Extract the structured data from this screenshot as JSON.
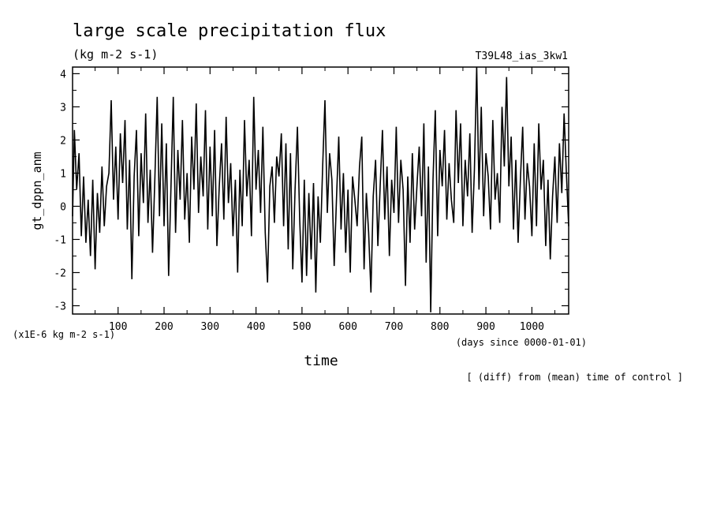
{
  "chart_data": {
    "type": "line",
    "title": "large scale precipitation flux",
    "subtitle": "(kg m-2 s-1)",
    "run_label": "T39L48_ias_3kw1",
    "ylabel": "gt_dppn_anm",
    "xlabel": "time",
    "y_scale_note": "(x1E-6 kg m-2 s-1)",
    "x_units": "(days since 0000-01-01)",
    "footnote": "[ (diff) from (mean) time of control ]",
    "xlim": [
      1,
      1080
    ],
    "ylim": [
      -3.25,
      4.2
    ],
    "x_ticks": [
      "100",
      "200",
      "300",
      "400",
      "500",
      "600",
      "700",
      "800",
      "900",
      "1000"
    ],
    "y_ticks": [
      "-3",
      "-2",
      "-1",
      "0",
      "1",
      "2",
      "3",
      "4"
    ],
    "grid": false,
    "series": [
      {
        "x": [
          1,
          5,
          10,
          15,
          20,
          25,
          30,
          35,
          40,
          45,
          50,
          55,
          60,
          65,
          70,
          75,
          80,
          85,
          90,
          95,
          100,
          105,
          110,
          115,
          120,
          125,
          130,
          135,
          140,
          145,
          150,
          155,
          160,
          165,
          170,
          175,
          180,
          185,
          190,
          195,
          200,
          205,
          210,
          215,
          220,
          225,
          230,
          235,
          240,
          245,
          250,
          255,
          260,
          265,
          270,
          275,
          280,
          285,
          290,
          295,
          300,
          305,
          310,
          315,
          320,
          325,
          330,
          335,
          340,
          345,
          350,
          355,
          360,
          365,
          370,
          375,
          380,
          385,
          390,
          395,
          400,
          405,
          410,
          415,
          420,
          425,
          430,
          435,
          440,
          445,
          450,
          455,
          460,
          465,
          470,
          475,
          480,
          485,
          490,
          495,
          500,
          505,
          510,
          515,
          520,
          525,
          530,
          535,
          540,
          545,
          550,
          555,
          560,
          565,
          570,
          575,
          580,
          585,
          590,
          595,
          600,
          605,
          610,
          615,
          620,
          625,
          630,
          635,
          640,
          645,
          650,
          655,
          660,
          665,
          670,
          675,
          680,
          685,
          690,
          695,
          700,
          705,
          710,
          715,
          720,
          725,
          730,
          735,
          740,
          745,
          750,
          755,
          760,
          765,
          770,
          775,
          780,
          785,
          790,
          795,
          800,
          805,
          810,
          815,
          820,
          825,
          830,
          835,
          840,
          845,
          850,
          855,
          860,
          865,
          870,
          875,
          880,
          885,
          890,
          895,
          900,
          905,
          910,
          915,
          920,
          925,
          930,
          935,
          940,
          945,
          950,
          955,
          960,
          965,
          970,
          975,
          980,
          985,
          990,
          995,
          1000,
          1005,
          1010,
          1015,
          1020,
          1025,
          1030,
          1035,
          1040,
          1045,
          1050,
          1055,
          1060,
          1065,
          1070,
          1075,
          1080
        ],
        "values": [
          -0.3,
          2.3,
          0.5,
          1.6,
          -0.9,
          0.9,
          -1.1,
          0.2,
          -1.5,
          0.8,
          -1.9,
          0.4,
          -0.8,
          1.2,
          -0.6,
          0.6,
          1.0,
          3.2,
          0.2,
          1.8,
          -0.4,
          2.2,
          0.7,
          2.6,
          -0.7,
          1.4,
          -2.2,
          0.9,
          2.3,
          -0.9,
          1.6,
          0.1,
          2.8,
          -0.5,
          1.1,
          -1.4,
          0.8,
          3.3,
          -0.3,
          2.5,
          -0.6,
          1.9,
          -2.1,
          0.6,
          3.3,
          -0.8,
          1.7,
          0.2,
          2.6,
          -0.4,
          1.0,
          -1.1,
          2.1,
          0.5,
          3.1,
          -0.2,
          1.5,
          0.3,
          2.9,
          -0.7,
          1.8,
          -0.3,
          2.3,
          -1.2,
          0.6,
          1.9,
          -0.4,
          2.7,
          0.1,
          1.3,
          -0.9,
          0.8,
          -2.0,
          1.1,
          -0.6,
          2.6,
          0.3,
          1.4,
          -0.9,
          3.3,
          0.5,
          1.7,
          -0.2,
          2.4,
          -0.8,
          -2.3,
          0.6,
          1.2,
          -0.5,
          1.5,
          0.9,
          2.2,
          -0.6,
          1.9,
          -1.3,
          1.6,
          -1.9,
          0.5,
          2.4,
          -0.4,
          -2.3,
          0.8,
          -2.1,
          0.4,
          -1.6,
          0.7,
          -2.6,
          0.3,
          -1.1,
          1.2,
          3.2,
          -0.2,
          1.6,
          0.8,
          -1.8,
          0.2,
          2.1,
          -0.7,
          1.0,
          -1.4,
          0.5,
          -2.0,
          0.9,
          0.2,
          -0.6,
          1.2,
          2.1,
          -1.9,
          0.4,
          -0.8,
          -2.6,
          0.3,
          1.4,
          -1.2,
          0.6,
          2.3,
          -0.4,
          1.2,
          -1.5,
          0.8,
          -0.2,
          2.4,
          -0.5,
          1.4,
          0.5,
          -2.4,
          0.9,
          -1.1,
          1.6,
          -0.7,
          0.6,
          1.8,
          -0.3,
          2.5,
          -1.7,
          1.2,
          -3.2,
          0.8,
          2.9,
          -0.9,
          1.7,
          0.6,
          2.3,
          -0.4,
          1.3,
          0.2,
          -0.5,
          2.9,
          0.7,
          2.5,
          -0.6,
          1.4,
          0.3,
          2.2,
          -0.8,
          1.1,
          4.2,
          0.5,
          3.0,
          -0.3,
          1.6,
          0.9,
          -0.7,
          2.6,
          0.2,
          1.0,
          -0.5,
          3.0,
          1.2,
          3.9,
          0.6,
          2.1,
          -0.7,
          1.4,
          -1.1,
          0.8,
          2.4,
          -0.4,
          1.3,
          0.6,
          -0.9,
          1.9,
          -0.6,
          2.5,
          0.5,
          1.4,
          -1.2,
          0.8,
          -1.6,
          0.3,
          1.5,
          -0.5,
          1.9,
          0.4,
          2.8,
          1.0,
          -0.6
        ]
      }
    ]
  }
}
